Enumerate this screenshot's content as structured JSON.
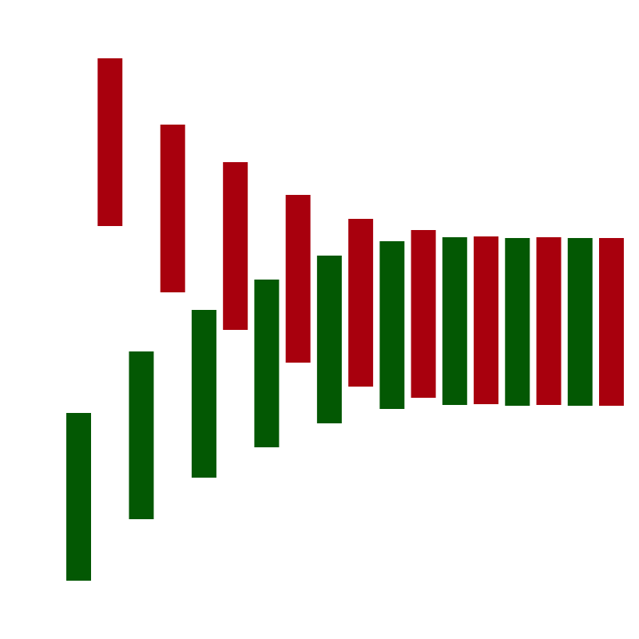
{
  "chart_data": {
    "type": "bar",
    "subtype": "floating-range",
    "title": "",
    "xlabel": "",
    "ylabel": "",
    "axes_visible": false,
    "grid": false,
    "legend": "none",
    "colors": {
      "background": "#ffffff",
      "up": "#035803",
      "down": "#a8000d"
    },
    "bars": [
      {
        "direction": "up",
        "low": 73,
        "high": 283
      },
      {
        "direction": "down",
        "low": 517,
        "high": 727
      },
      {
        "direction": "up",
        "low": 156,
        "high": 366
      },
      {
        "direction": "down",
        "low": 440,
        "high": 650
      },
      {
        "direction": "up",
        "low": 203,
        "high": 413
      },
      {
        "direction": "down",
        "low": 388,
        "high": 598
      },
      {
        "direction": "up",
        "low": 244,
        "high": 454
      },
      {
        "direction": "down",
        "low": 350,
        "high": 560
      },
      {
        "direction": "up",
        "low": 274,
        "high": 484
      },
      {
        "direction": "down",
        "low": 320,
        "high": 530
      },
      {
        "direction": "up",
        "low": 288,
        "high": 498
      },
      {
        "direction": "down",
        "low": 302,
        "high": 512
      },
      {
        "direction": "up",
        "low": 296,
        "high": 506
      },
      {
        "direction": "down",
        "low": 297,
        "high": 507
      },
      {
        "direction": "up",
        "low": 297,
        "high": 507
      },
      {
        "direction": "down",
        "low": 298,
        "high": 508
      },
      {
        "direction": "up",
        "low": 298,
        "high": 508
      },
      {
        "direction": "down",
        "low": 298,
        "high": 508
      }
    ],
    "ylim": [
      0,
      800
    ]
  }
}
